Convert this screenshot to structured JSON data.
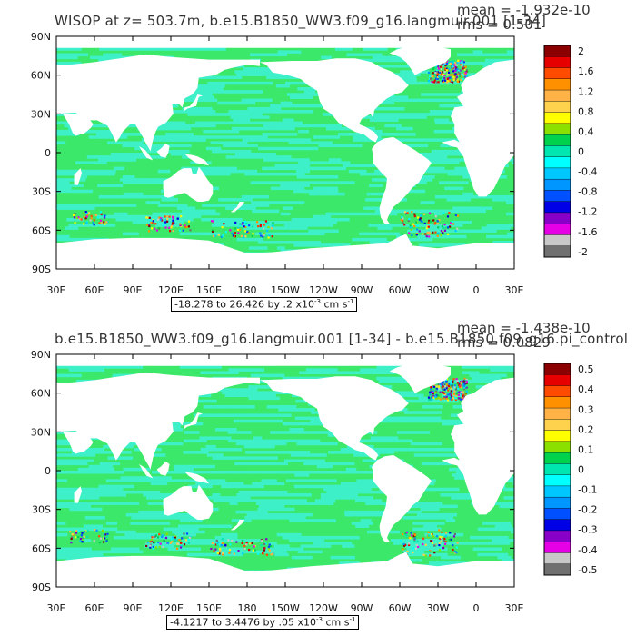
{
  "chart_data": [
    {
      "type": "heatmap",
      "title": "WISOP at z= 503.7m, b.e15.B1850_WW3.f09_g16.langmuir.001 [1-34]",
      "stat_mean": "mean = -1.932e-10",
      "stat_rms": "rms = 0.501",
      "range_prefix": "-18.278 to 26.426 by .2 x10",
      "range_exp": "-3",
      "range_unit": " cm s",
      "range_unit_exp": "-1",
      "xlim": [
        30,
        390
      ],
      "ylim": [
        -90,
        90
      ],
      "xticks": [
        "30E",
        "60E",
        "90E",
        "120E",
        "150E",
        "180",
        "150W",
        "120W",
        "90W",
        "60W",
        "30W",
        "0",
        "30E"
      ],
      "yticks": [
        "90N",
        "60N",
        "30N",
        "0",
        "30S",
        "60S",
        "90S"
      ],
      "colorbar_labels": [
        "2",
        "1.6",
        "1.2",
        "0.8",
        "0.4",
        "0",
        "-0.4",
        "-0.8",
        "-1.2",
        "-1.6",
        "-2"
      ],
      "field_extremes": {
        "min": -18.278,
        "max": 26.426
      },
      "stats": {
        "mean": -1.932e-10,
        "rms": 0.501
      }
    },
    {
      "type": "heatmap",
      "title": "b.e15.B1850_WW3.f09_g16.langmuir.001 [1-34] - b.e15.B1850.f09_g16.pi_control",
      "stat_mean": "mean = -1.438e-10",
      "stat_rms": "rms = 0.0829",
      "range_prefix": "-4.1217 to 3.4476 by .05 x10",
      "range_exp": "-3",
      "range_unit": " cm s",
      "range_unit_exp": "-1",
      "xlim": [
        30,
        390
      ],
      "ylim": [
        -90,
        90
      ],
      "xticks": [
        "30E",
        "60E",
        "90E",
        "120E",
        "150E",
        "180",
        "150W",
        "120W",
        "90W",
        "60W",
        "30W",
        "0",
        "30E"
      ],
      "yticks": [
        "90N",
        "60N",
        "30N",
        "0",
        "30S",
        "60S",
        "90S"
      ],
      "colorbar_labels": [
        "0.5",
        "0.4",
        "0.3",
        "0.2",
        "0.1",
        "0",
        "-0.1",
        "-0.2",
        "-0.3",
        "-0.4",
        "-0.5"
      ],
      "field_extremes": {
        "min": -4.1217,
        "max": 3.4476
      },
      "stats": {
        "mean": -1.438e-10,
        "rms": 0.0829
      }
    }
  ],
  "palette": [
    "#8b0000",
    "#e60000",
    "#ff4b00",
    "#ff9000",
    "#ffb347",
    "#ffd24d",
    "#ffff00",
    "#8be000",
    "#00d24d",
    "#00e6b0",
    "#00ffff",
    "#00c8ff",
    "#0096ff",
    "#0050ff",
    "#0000e6",
    "#8800c8",
    "#e600e6",
    "#c8c8c8",
    "#707070"
  ],
  "colors": {
    "ocean_base": "#3ce86a",
    "ocean_alt": "#3ef0c8",
    "land": "#ffffff"
  }
}
